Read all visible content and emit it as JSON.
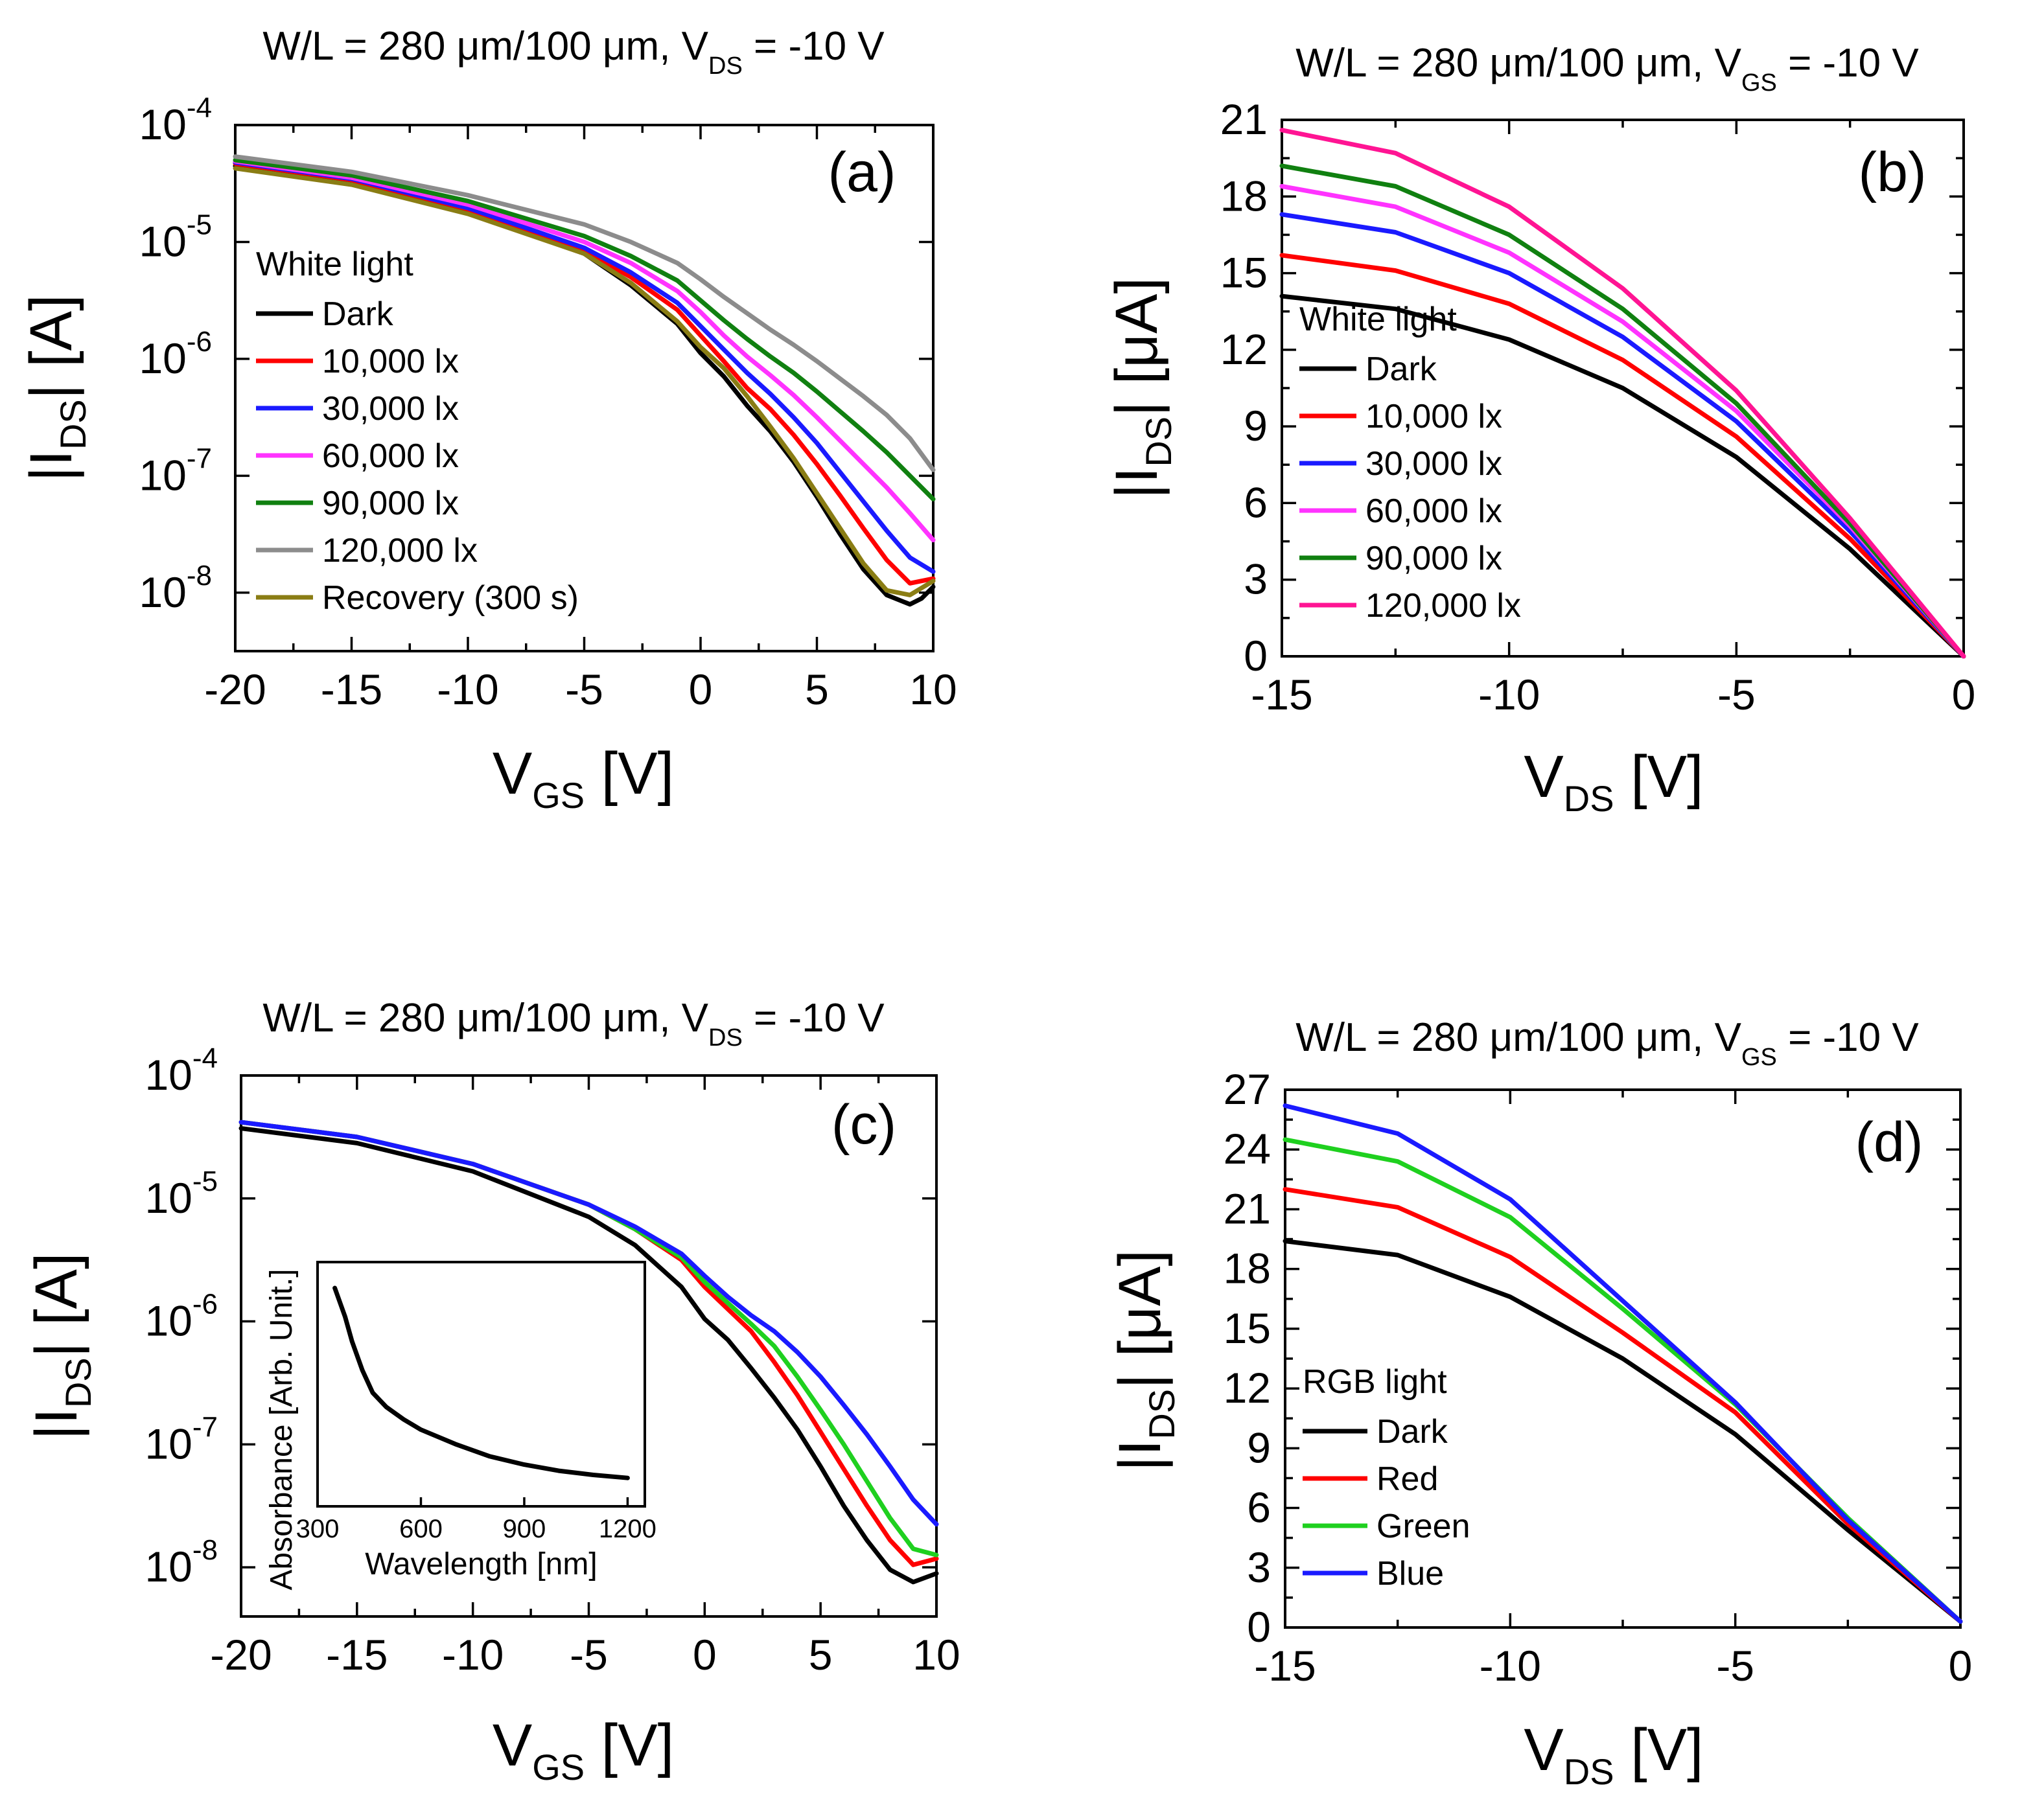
{
  "chart_data": [
    {
      "type": "line",
      "panel_label": "(a)",
      "title": "W/L = 280 μm/100 μm, V",
      "title_sub": "DS",
      "title_tail": " = -10 V",
      "xlabel_main": "V",
      "xlabel_sub": "GS",
      "xlabel_tail": " [V]",
      "ylabel_pre": "|I",
      "ylabel_sub": "DS",
      "ylabel_tail": "| [A]",
      "yscale": "log",
      "xlim": [
        -20,
        10
      ],
      "ylim": [
        -8.5,
        -4
      ],
      "x_ticks": [
        "-20",
        "-15",
        "-10",
        "-5",
        "0",
        "5",
        "10"
      ],
      "x_tick_values": [
        -20,
        -15,
        -10,
        -5,
        0,
        5,
        10
      ],
      "y_ticks": [
        {
          "base": "10",
          "exp": "-4"
        },
        {
          "base": "10",
          "exp": "-5"
        },
        {
          "base": "10",
          "exp": "-6"
        },
        {
          "base": "10",
          "exp": "-7"
        },
        {
          "base": "10",
          "exp": "-8"
        }
      ],
      "y_tick_values": [
        -4,
        -5,
        -6,
        -7,
        -8
      ],
      "legend_title": "White light",
      "series": [
        {
          "name": "Dark",
          "color": "#000000",
          "x": [
            -20,
            -15,
            -10,
            -5,
            -3,
            -1,
            0,
            1,
            2,
            3,
            4,
            5,
            6,
            7,
            8,
            9,
            9.5,
            10
          ],
          "y": [
            -4.35,
            -4.5,
            -4.75,
            -5.1,
            -5.37,
            -5.7,
            -5.95,
            -6.15,
            -6.4,
            -6.62,
            -6.88,
            -7.18,
            -7.5,
            -7.8,
            -8.02,
            -8.1,
            -8.05,
            -7.95
          ]
        },
        {
          "name": "10,000 lx",
          "color": "#ff0000",
          "x": [
            -20,
            -15,
            -10,
            -5,
            -3,
            -1,
            0,
            1,
            2,
            3,
            4,
            5,
            6,
            7,
            8,
            9,
            10
          ],
          "y": [
            -4.33,
            -4.47,
            -4.72,
            -5.08,
            -5.3,
            -5.58,
            -5.8,
            -6.02,
            -6.25,
            -6.43,
            -6.65,
            -6.9,
            -7.17,
            -7.45,
            -7.72,
            -7.92,
            -7.88
          ]
        },
        {
          "name": "30,000 lx",
          "color": "#1a1aff",
          "x": [
            -20,
            -15,
            -10,
            -5,
            -3,
            -1,
            0,
            1,
            2,
            3,
            4,
            5,
            6,
            7,
            8,
            9,
            10
          ],
          "y": [
            -4.32,
            -4.46,
            -4.71,
            -5.05,
            -5.26,
            -5.52,
            -5.72,
            -5.92,
            -6.12,
            -6.3,
            -6.5,
            -6.72,
            -6.97,
            -7.22,
            -7.47,
            -7.7,
            -7.82
          ]
        },
        {
          "name": "60,000 lx",
          "color": "#ff33ff",
          "x": [
            -20,
            -15,
            -10,
            -5,
            -3,
            -1,
            0,
            1,
            2,
            3,
            4,
            5,
            6,
            7,
            8,
            9,
            10
          ],
          "y": [
            -4.31,
            -4.45,
            -4.68,
            -5.0,
            -5.18,
            -5.42,
            -5.6,
            -5.8,
            -5.98,
            -6.14,
            -6.31,
            -6.5,
            -6.7,
            -6.9,
            -7.1,
            -7.32,
            -7.55
          ]
        },
        {
          "name": "90,000 lx",
          "color": "#108010",
          "x": [
            -20,
            -15,
            -10,
            -5,
            -3,
            -1,
            0,
            1,
            2,
            3,
            4,
            5,
            6,
            7,
            8,
            9,
            10
          ],
          "y": [
            -4.3,
            -4.43,
            -4.65,
            -4.95,
            -5.12,
            -5.33,
            -5.5,
            -5.67,
            -5.83,
            -5.98,
            -6.12,
            -6.28,
            -6.45,
            -6.62,
            -6.8,
            -7.0,
            -7.2
          ]
        },
        {
          "name": "120,000 lx",
          "color": "#8c8c8c",
          "x": [
            -20,
            -15,
            -10,
            -5,
            -3,
            -1,
            0,
            1,
            2,
            3,
            4,
            5,
            6,
            7,
            8,
            9,
            10
          ],
          "y": [
            -4.27,
            -4.4,
            -4.6,
            -4.85,
            -5.0,
            -5.18,
            -5.32,
            -5.47,
            -5.61,
            -5.75,
            -5.88,
            -6.02,
            -6.17,
            -6.32,
            -6.48,
            -6.68,
            -6.95
          ]
        },
        {
          "name": "Recovery (300 s)",
          "color": "#8a7d14",
          "x": [
            -20,
            -15,
            -10,
            -5,
            -3,
            -1,
            0,
            1,
            2,
            3,
            4,
            5,
            6,
            7,
            8,
            9,
            10
          ],
          "y": [
            -4.37,
            -4.51,
            -4.76,
            -5.1,
            -5.35,
            -5.68,
            -5.9,
            -6.08,
            -6.32,
            -6.58,
            -6.85,
            -7.15,
            -7.45,
            -7.75,
            -7.98,
            -8.02,
            -7.9
          ]
        }
      ]
    },
    {
      "type": "line",
      "panel_label": "(b)",
      "title": "W/L = 280 μm/100 μm, V",
      "title_sub": "GS",
      "title_tail": " = -10 V",
      "xlabel_main": "V",
      "xlabel_sub": "DS",
      "xlabel_tail": " [V]",
      "ylabel_pre": "|I",
      "ylabel_sub": "DS",
      "ylabel_tail": "| [μA]",
      "yscale": "linear",
      "xlim": [
        -15,
        0
      ],
      "ylim": [
        0,
        21
      ],
      "x_ticks": [
        "-15",
        "-10",
        "-5",
        "0"
      ],
      "x_tick_values": [
        -15,
        -10,
        -5,
        0
      ],
      "y_ticks": [
        "0",
        "3",
        "6",
        "9",
        "12",
        "15",
        "18",
        "21"
      ],
      "y_tick_values": [
        0,
        3,
        6,
        9,
        12,
        15,
        18,
        21
      ],
      "legend_title": "White light",
      "series": [
        {
          "name": "Dark",
          "color": "#000000",
          "x": [
            -15,
            -12.5,
            -10,
            -7.5,
            -5,
            -2.5,
            0
          ],
          "y": [
            14.1,
            13.6,
            12.4,
            10.5,
            7.8,
            4.2,
            0
          ]
        },
        {
          "name": "10,000 lx",
          "color": "#ff0000",
          "x": [
            -15,
            -12.5,
            -10,
            -7.5,
            -5,
            -2.5,
            0
          ],
          "y": [
            15.7,
            15.1,
            13.8,
            11.6,
            8.6,
            4.6,
            0
          ]
        },
        {
          "name": "30,000 lx",
          "color": "#1a1aff",
          "x": [
            -15,
            -12.5,
            -10,
            -7.5,
            -5,
            -2.5,
            0
          ],
          "y": [
            17.3,
            16.6,
            15.0,
            12.5,
            9.2,
            4.9,
            0
          ]
        },
        {
          "name": "60,000 lx",
          "color": "#ff33ff",
          "x": [
            -15,
            -12.5,
            -10,
            -7.5,
            -5,
            -2.5,
            0
          ],
          "y": [
            18.4,
            17.6,
            15.8,
            13.1,
            9.6,
            5.1,
            0
          ]
        },
        {
          "name": "90,000 lx",
          "color": "#108010",
          "x": [
            -15,
            -12.5,
            -10,
            -7.5,
            -5,
            -2.5,
            0
          ],
          "y": [
            19.2,
            18.4,
            16.5,
            13.6,
            9.9,
            5.2,
            0
          ]
        },
        {
          "name": "120,000 lx",
          "color": "#ff1493",
          "x": [
            -15,
            -12.5,
            -10,
            -7.5,
            -5,
            -2.5,
            0
          ],
          "y": [
            20.6,
            19.7,
            17.6,
            14.4,
            10.4,
            5.4,
            0
          ]
        }
      ]
    },
    {
      "type": "line",
      "panel_label": "(c)",
      "title": "W/L = 280 μm/100 μm, V",
      "title_sub": "DS",
      "title_tail": " = -10 V",
      "xlabel_main": "V",
      "xlabel_sub": "GS",
      "xlabel_tail": " [V]",
      "ylabel_pre": "|I",
      "ylabel_sub": "DS",
      "ylabel_tail": "| [A]",
      "yscale": "log",
      "xlim": [
        -20,
        10
      ],
      "ylim": [
        -8.4,
        -4
      ],
      "x_ticks": [
        "-20",
        "-15",
        "-10",
        "-5",
        "0",
        "5",
        "10"
      ],
      "x_tick_values": [
        -20,
        -15,
        -10,
        -5,
        0,
        5,
        10
      ],
      "y_ticks": [
        {
          "base": "10",
          "exp": "-4"
        },
        {
          "base": "10",
          "exp": "-5"
        },
        {
          "base": "10",
          "exp": "-6"
        },
        {
          "base": "10",
          "exp": "-7"
        },
        {
          "base": "10",
          "exp": "-8"
        }
      ],
      "y_tick_values": [
        -4,
        -5,
        -6,
        -7,
        -8
      ],
      "series": [
        {
          "name": "Dark",
          "color": "#000000",
          "x": [
            -20,
            -15,
            -10,
            -5,
            -3,
            -1,
            0,
            1,
            2,
            3,
            4,
            5,
            6,
            7,
            8,
            9,
            10
          ],
          "y": [
            -4.43,
            -4.55,
            -4.78,
            -5.15,
            -5.38,
            -5.72,
            -5.98,
            -6.15,
            -6.38,
            -6.62,
            -6.88,
            -7.18,
            -7.5,
            -7.78,
            -8.02,
            -8.12,
            -8.05
          ]
        },
        {
          "name": "Red",
          "color": "#ff0000",
          "x": [
            -20,
            -15,
            -10,
            -5,
            -3,
            -1,
            0,
            1,
            2,
            3,
            4,
            5,
            6,
            7,
            8,
            9,
            10
          ],
          "y": [
            -4.38,
            -4.5,
            -4.72,
            -5.05,
            -5.25,
            -5.5,
            -5.72,
            -5.9,
            -6.08,
            -6.33,
            -6.6,
            -6.9,
            -7.2,
            -7.5,
            -7.78,
            -7.98,
            -7.93
          ]
        },
        {
          "name": "Green",
          "color": "#1fd01f",
          "x": [
            -20,
            -15,
            -10,
            -5,
            -3,
            -1,
            0,
            1,
            2,
            3,
            4,
            5,
            6,
            7,
            8,
            9,
            10
          ],
          "y": [
            -4.38,
            -4.5,
            -4.72,
            -5.05,
            -5.25,
            -5.48,
            -5.68,
            -5.85,
            -6.02,
            -6.2,
            -6.45,
            -6.72,
            -7.0,
            -7.3,
            -7.6,
            -7.85,
            -7.9
          ]
        },
        {
          "name": "Blue",
          "color": "#1a1aff",
          "x": [
            -20,
            -15,
            -10,
            -5,
            -3,
            -1,
            0,
            1,
            2,
            3,
            4,
            5,
            6,
            7,
            8,
            9,
            10
          ],
          "y": [
            -4.38,
            -4.5,
            -4.72,
            -5.05,
            -5.23,
            -5.45,
            -5.63,
            -5.8,
            -5.95,
            -6.08,
            -6.25,
            -6.45,
            -6.68,
            -6.92,
            -7.18,
            -7.45,
            -7.65
          ]
        }
      ],
      "inset": {
        "type": "line",
        "xlabel": "Wavelength [nm]",
        "ylabel": "Absorbance [Arb. Unit.]",
        "xlim": [
          300,
          1250
        ],
        "x_ticks": [
          "300",
          "600",
          "900",
          "1200"
        ],
        "x_tick_values": [
          300,
          600,
          900,
          1200
        ],
        "series": [
          {
            "name": "Absorbance",
            "color": "#000000",
            "x": [
              350,
              380,
              400,
              430,
              460,
              500,
              550,
              600,
              700,
              800,
              900,
              1000,
              1100,
              1200
            ],
            "y": [
              1.0,
              0.86,
              0.74,
              0.6,
              0.49,
              0.42,
              0.36,
              0.31,
              0.24,
              0.18,
              0.14,
              0.11,
              0.09,
              0.075
            ]
          }
        ]
      }
    },
    {
      "type": "line",
      "panel_label": "(d)",
      "title": "W/L = 280 μm/100 μm, V",
      "title_sub": "GS",
      "title_tail": " = -10 V",
      "xlabel_main": "V",
      "xlabel_sub": "DS",
      "xlabel_tail": " [V]",
      "ylabel_pre": "|I",
      "ylabel_sub": "DS",
      "ylabel_tail": "| [μA]",
      "yscale": "linear",
      "xlim": [
        -15,
        0
      ],
      "ylim": [
        0,
        27
      ],
      "x_ticks": [
        "-15",
        "-10",
        "-5",
        "0"
      ],
      "x_tick_values": [
        -15,
        -10,
        -5,
        0
      ],
      "y_ticks": [
        "0",
        "3",
        "6",
        "9",
        "12",
        "15",
        "18",
        "21",
        "24",
        "27"
      ],
      "y_tick_values": [
        0,
        3,
        6,
        9,
        12,
        15,
        18,
        21,
        24,
        27
      ],
      "legend_title": "RGB light",
      "series": [
        {
          "name": "Dark",
          "color": "#000000",
          "x": [
            -15,
            -12.5,
            -10,
            -7.5,
            -5,
            -2.5,
            0
          ],
          "y": [
            19.4,
            18.7,
            16.6,
            13.5,
            9.7,
            4.9,
            0.3
          ]
        },
        {
          "name": "Red",
          "color": "#ff0000",
          "x": [
            -15,
            -12.5,
            -10,
            -7.5,
            -5,
            -2.5,
            0
          ],
          "y": [
            22.0,
            21.1,
            18.6,
            14.8,
            10.8,
            5.2,
            0.3
          ]
        },
        {
          "name": "Green",
          "color": "#1fd01f",
          "x": [
            -15,
            -12.5,
            -10,
            -7.5,
            -5,
            -2.5,
            0
          ],
          "y": [
            24.5,
            23.4,
            20.6,
            16.0,
            11.2,
            5.5,
            0.3
          ]
        },
        {
          "name": "Blue",
          "color": "#1a1aff",
          "x": [
            -15,
            -12.5,
            -10,
            -7.5,
            -5,
            -2.5,
            0
          ],
          "y": [
            26.2,
            24.8,
            21.5,
            16.4,
            11.3,
            5.4,
            0.3
          ]
        }
      ]
    }
  ]
}
